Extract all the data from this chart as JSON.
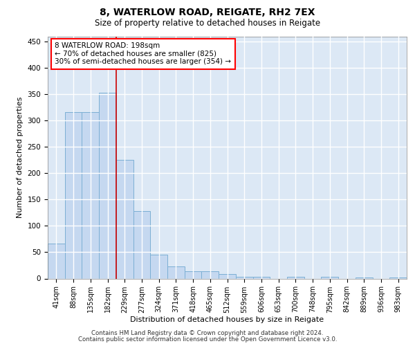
{
  "title1": "8, WATERLOW ROAD, REIGATE, RH2 7EX",
  "title2": "Size of property relative to detached houses in Reigate",
  "xlabel": "Distribution of detached houses by size in Reigate",
  "ylabel": "Number of detached properties",
  "categories": [
    "41sqm",
    "88sqm",
    "135sqm",
    "182sqm",
    "229sqm",
    "277sqm",
    "324sqm",
    "371sqm",
    "418sqm",
    "465sqm",
    "512sqm",
    "559sqm",
    "606sqm",
    "653sqm",
    "700sqm",
    "748sqm",
    "795sqm",
    "842sqm",
    "889sqm",
    "936sqm",
    "983sqm"
  ],
  "values": [
    67,
    316,
    316,
    353,
    226,
    128,
    46,
    23,
    14,
    14,
    9,
    3,
    3,
    0,
    3,
    0,
    3,
    0,
    2,
    0,
    2
  ],
  "bar_color": "#c5d8f0",
  "bar_edgecolor": "#7bafd4",
  "background_color": "#dce8f5",
  "grid_color": "#ffffff",
  "vline_x": 3.5,
  "vline_color": "#cc0000",
  "annotation_line1": "8 WATERLOW ROAD: 198sqm",
  "annotation_line2": "← 70% of detached houses are smaller (825)",
  "annotation_line3": "30% of semi-detached houses are larger (354) →",
  "ylim": [
    0,
    460
  ],
  "yticks": [
    0,
    50,
    100,
    150,
    200,
    250,
    300,
    350,
    400,
    450
  ],
  "footer1": "Contains HM Land Registry data © Crown copyright and database right 2024.",
  "footer2": "Contains public sector information licensed under the Open Government Licence v3.0."
}
